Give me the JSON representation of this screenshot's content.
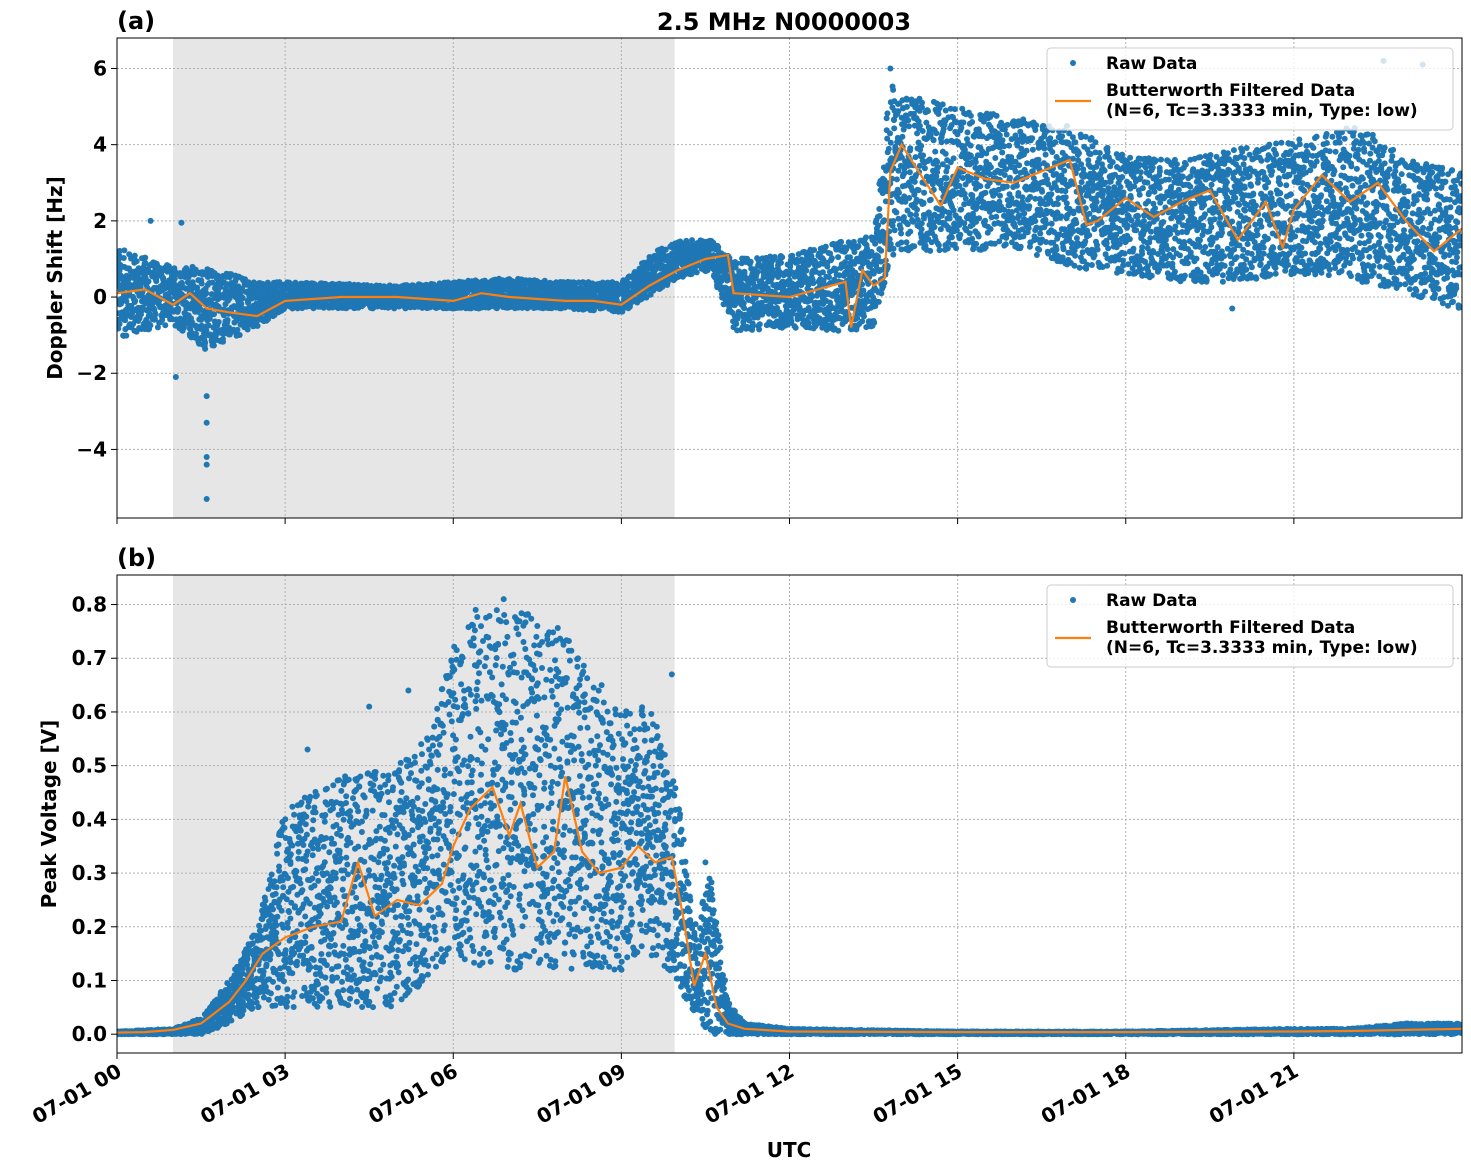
{
  "figure_title": "2.5 MHz N0000003",
  "x_axis_label": "UTC",
  "x_tick_labels": [
    "07-01 00",
    "07-01 03",
    "07-01 06",
    "07-01 09",
    "07-01 12",
    "07-01 15",
    "07-01 18",
    "07-01 21"
  ],
  "legend": {
    "raw": "Raw Data",
    "filtered_line1": "Butterworth Filtered Data",
    "filtered_line2": "(N=6, Tc=3.3333 min, Type: low)"
  },
  "colors": {
    "raw": "#1f77b4",
    "filtered": "#ff7f0e",
    "shade": "#e6e6e6"
  },
  "chart_data": [
    {
      "type": "scatter",
      "panel": "(a)",
      "title": "2.5 MHz N0000003",
      "xlabel": "",
      "ylabel": "Doppler Shift [Hz]",
      "xlim_hours": [
        0,
        24
      ],
      "ylim": [
        -5.8,
        6.8
      ],
      "yticks": [
        -4,
        -2,
        0,
        2,
        4,
        6
      ],
      "ytick_labels": [
        "−4",
        "−2",
        "0",
        "2",
        "4",
        "6"
      ],
      "shaded_region_hours": [
        1.0,
        9.95
      ],
      "grid": true,
      "legend_position": "top-right",
      "series": [
        {
          "name": "Raw Data",
          "style": "points",
          "envelope": {
            "x_hours": [
              0,
              1,
              1.6,
              2.5,
              3,
              5,
              7,
              8,
              9,
              9.6,
              10,
              10.6,
              11,
              12,
              13,
              13.5,
              13.8,
              14,
              15,
              16,
              17,
              18,
              19,
              20,
              21,
              22,
              22.5,
              23,
              24
            ],
            "low": [
              -1.1,
              -0.7,
              -1.4,
              -0.8,
              -0.3,
              -0.3,
              -0.3,
              -0.3,
              -0.4,
              0.1,
              0.5,
              0.7,
              -0.9,
              -0.8,
              -0.9,
              -0.8,
              1.0,
              1.2,
              1.2,
              1.3,
              0.8,
              0.6,
              0.4,
              0.4,
              0.6,
              0.4,
              0.3,
              0.1,
              -0.4
            ],
            "high": [
              1.3,
              0.8,
              0.8,
              0.4,
              0.4,
              0.3,
              0.5,
              0.4,
              0.4,
              1.2,
              1.5,
              1.5,
              1.0,
              1.1,
              1.5,
              1.6,
              5.7,
              5.3,
              5.0,
              4.7,
              4.5,
              3.7,
              3.6,
              3.9,
              4.1,
              4.5,
              4.2,
              3.6,
              3.3
            ]
          },
          "outliers": [
            {
              "x_hours": 0.6,
              "y": 2.0
            },
            {
              "x_hours": 1.15,
              "y": 1.95
            },
            {
              "x_hours": 1.05,
              "y": -2.1
            },
            {
              "x_hours": 1.6,
              "y": -2.6
            },
            {
              "x_hours": 1.6,
              "y": -3.3
            },
            {
              "x_hours": 1.6,
              "y": -4.2
            },
            {
              "x_hours": 1.6,
              "y": -4.4
            },
            {
              "x_hours": 1.6,
              "y": -5.3
            },
            {
              "x_hours": 13.8,
              "y": 6.0
            },
            {
              "x_hours": 19.9,
              "y": -0.3
            },
            {
              "x_hours": 22.6,
              "y": 6.2
            },
            {
              "x_hours": 23.3,
              "y": 6.1
            }
          ]
        },
        {
          "name": "Butterworth Filtered Data (N=6, Tc=3.3333 min, Type: low)",
          "style": "line",
          "x_hours": [
            0,
            0.5,
            1,
            1.3,
            1.6,
            2,
            2.5,
            3,
            4,
            5,
            6,
            6.5,
            7,
            8,
            8.5,
            9,
            9.5,
            10,
            10.5,
            10.9,
            11,
            12,
            12.5,
            13,
            13.1,
            13.3,
            13.5,
            13.7,
            13.8,
            14,
            14.3,
            14.7,
            15,
            15.5,
            16,
            16.5,
            17,
            17.3,
            17.5,
            18,
            18.5,
            19,
            19.5,
            20,
            20.5,
            20.8,
            21,
            21.5,
            22,
            22.5,
            23,
            23.5,
            24
          ],
          "y": [
            0.1,
            0.2,
            -0.2,
            0.1,
            -0.3,
            -0.4,
            -0.5,
            -0.1,
            0.0,
            0.0,
            -0.1,
            0.1,
            0.0,
            -0.1,
            -0.1,
            -0.2,
            0.3,
            0.7,
            1.0,
            1.1,
            0.1,
            0.0,
            0.2,
            0.4,
            -0.8,
            0.7,
            0.3,
            0.5,
            3.3,
            4.0,
            3.3,
            2.4,
            3.4,
            3.1,
            3.0,
            3.3,
            3.6,
            1.9,
            2.0,
            2.6,
            2.1,
            2.5,
            2.8,
            1.5,
            2.5,
            1.3,
            2.3,
            3.2,
            2.5,
            3.0,
            2.0,
            1.2,
            1.8
          ]
        }
      ]
    },
    {
      "type": "scatter",
      "panel": "(b)",
      "title": "",
      "xlabel": "UTC",
      "ylabel": "Peak Voltage [V]",
      "xlim_hours": [
        0,
        24
      ],
      "ylim": [
        -0.035,
        0.855
      ],
      "yticks": [
        0.0,
        0.1,
        0.2,
        0.3,
        0.4,
        0.5,
        0.6,
        0.7,
        0.8
      ],
      "ytick_labels": [
        "0.0",
        "0.1",
        "0.2",
        "0.3",
        "0.4",
        "0.5",
        "0.6",
        "0.7",
        "0.8"
      ],
      "shaded_region_hours": [
        1.0,
        9.95
      ],
      "grid": true,
      "legend_position": "top-right",
      "series": [
        {
          "name": "Raw Data",
          "style": "points",
          "envelope": {
            "x_hours": [
              0,
              1,
              1.5,
              2,
              2.5,
              3,
              4,
              5,
              5.5,
              6,
              6.5,
              7,
              8,
              9,
              9.5,
              10,
              10.3,
              10.6,
              10.9,
              11.2,
              12,
              15,
              18,
              21,
              22,
              23,
              24
            ],
            "low": [
              0.0,
              0.0,
              0.0,
              0.02,
              0.05,
              0.05,
              0.05,
              0.05,
              0.1,
              0.15,
              0.12,
              0.12,
              0.12,
              0.12,
              0.15,
              0.1,
              0.03,
              0.0,
              0.0,
              0.0,
              0.0,
              0.0,
              0.0,
              0.0,
              0.0,
              0.0,
              0.0
            ],
            "high": [
              0.005,
              0.01,
              0.03,
              0.1,
              0.2,
              0.42,
              0.48,
              0.5,
              0.55,
              0.72,
              0.79,
              0.8,
              0.75,
              0.6,
              0.62,
              0.45,
              0.2,
              0.3,
              0.06,
              0.02,
              0.01,
              0.005,
              0.005,
              0.01,
              0.01,
              0.02,
              0.02
            ]
          },
          "outliers": [
            {
              "x_hours": 6.9,
              "y": 0.81
            },
            {
              "x_hours": 6.4,
              "y": 0.79
            },
            {
              "x_hours": 7.5,
              "y": 0.76
            },
            {
              "x_hours": 4.5,
              "y": 0.61
            },
            {
              "x_hours": 5.2,
              "y": 0.64
            },
            {
              "x_hours": 9.9,
              "y": 0.67
            },
            {
              "x_hours": 3.4,
              "y": 0.53
            },
            {
              "x_hours": 10.5,
              "y": 0.32
            }
          ]
        },
        {
          "name": "Butterworth Filtered Data (N=6, Tc=3.3333 min, Type: low)",
          "style": "line",
          "x_hours": [
            0,
            0.5,
            1,
            1.5,
            2,
            2.3,
            2.6,
            3,
            3.5,
            4,
            4.3,
            4.6,
            5,
            5.4,
            5.8,
            6,
            6.3,
            6.7,
            7,
            7.2,
            7.5,
            7.8,
            8,
            8.3,
            8.6,
            9,
            9.3,
            9.6,
            9.9,
            10.1,
            10.3,
            10.5,
            10.7,
            10.9,
            11.2,
            12,
            15,
            18,
            21,
            22,
            23,
            24
          ],
          "y": [
            0.003,
            0.004,
            0.008,
            0.02,
            0.06,
            0.1,
            0.15,
            0.18,
            0.2,
            0.21,
            0.32,
            0.22,
            0.25,
            0.24,
            0.28,
            0.35,
            0.42,
            0.46,
            0.37,
            0.43,
            0.31,
            0.34,
            0.48,
            0.34,
            0.3,
            0.31,
            0.35,
            0.32,
            0.33,
            0.22,
            0.09,
            0.15,
            0.05,
            0.02,
            0.01,
            0.005,
            0.004,
            0.004,
            0.005,
            0.006,
            0.008,
            0.01
          ]
        }
      ]
    }
  ]
}
